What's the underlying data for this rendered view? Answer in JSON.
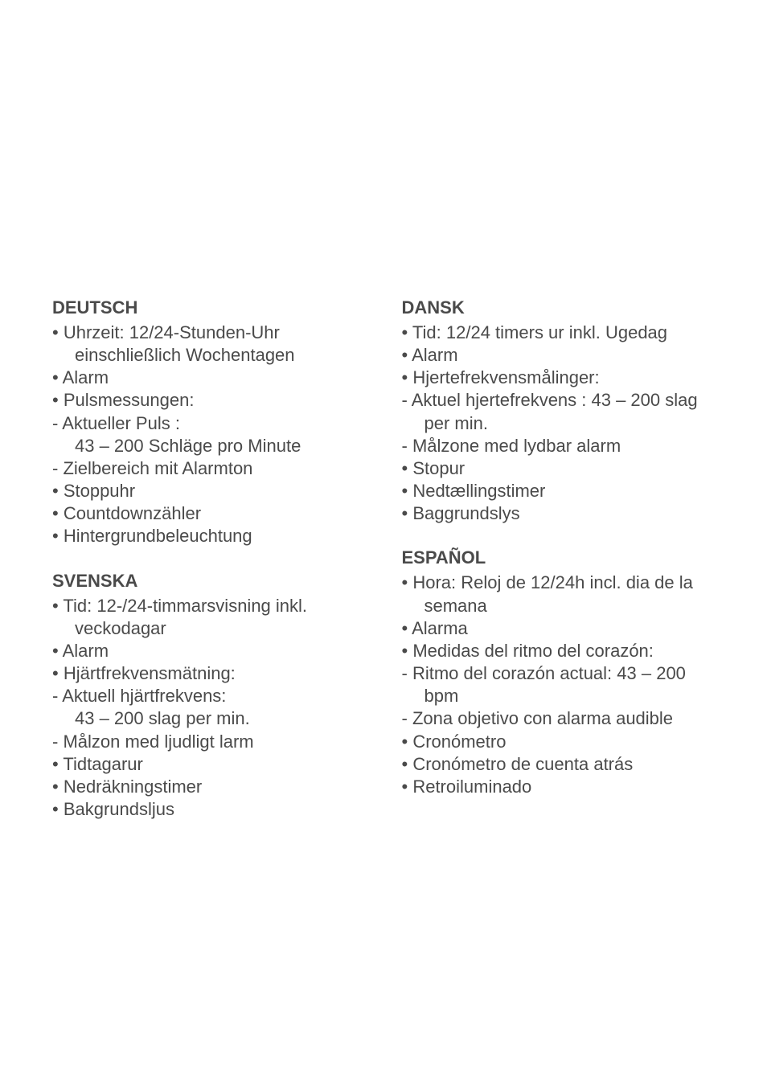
{
  "colors": {
    "text": "#4a4a4a",
    "background": "#ffffff"
  },
  "typography": {
    "font_family": "Arial, Helvetica, sans-serif",
    "title_fontsize": 22,
    "title_weight": "bold",
    "body_fontsize": 22,
    "line_height": 1.28
  },
  "columns": [
    {
      "sections": [
        {
          "title": "DEUTSCH",
          "items": [
            {
              "bullet": "•",
              "text": "Uhrzeit: 12/24-Stunden-Uhr einschließlich Wochentagen"
            },
            {
              "bullet": "•",
              "text": "Alarm"
            },
            {
              "bullet": "•",
              "text": "Pulsmessungen:"
            },
            {
              "bullet": "-",
              "text": "Aktueller Puls :"
            },
            {
              "bullet": "",
              "text": "43 – 200 Schläge pro Minute"
            },
            {
              "bullet": "-",
              "text": "Zielbereich mit Alarmton"
            },
            {
              "bullet": "•",
              "text": "Stoppuhr"
            },
            {
              "bullet": "•",
              "text": "Countdownzähler"
            },
            {
              "bullet": "•",
              "text": "Hintergrundbeleuchtung"
            }
          ]
        },
        {
          "title": "SVENSKA",
          "items": [
            {
              "bullet": "•",
              "text": "Tid: 12-/24-timmarsvisning inkl. veckodagar"
            },
            {
              "bullet": "•",
              "text": "Alarm"
            },
            {
              "bullet": "•",
              "text": "Hjärtfrekvensmätning:"
            },
            {
              "bullet": "-",
              "text": "Aktuell hjärtfrekvens:"
            },
            {
              "bullet": "",
              "text": "43 – 200 slag per min."
            },
            {
              "bullet": "-",
              "text": "Målzon med ljudligt larm"
            },
            {
              "bullet": "•",
              "text": "Tidtagarur"
            },
            {
              "bullet": "•",
              "text": "Nedräkningstimer"
            },
            {
              "bullet": "•",
              "text": "Bakgrundsljus"
            }
          ]
        }
      ]
    },
    {
      "sections": [
        {
          "title": "DANSK",
          "items": [
            {
              "bullet": "•",
              "text": "Tid: 12/24 timers ur inkl. Ugedag"
            },
            {
              "bullet": "•",
              "text": "Alarm"
            },
            {
              "bullet": "•",
              "text": "Hjertefrekvensmålinger:"
            },
            {
              "bullet": "-",
              "text": "Aktuel hjertefrekvens : 43 – 200 slag per min."
            },
            {
              "bullet": "-",
              "text": "Målzone med lydbar alarm"
            },
            {
              "bullet": "•",
              "text": "Stopur"
            },
            {
              "bullet": "•",
              "text": "Nedtællingstimer"
            },
            {
              "bullet": "•",
              "text": "Baggrundslys"
            }
          ]
        },
        {
          "title": "ESPAÑOL",
          "items": [
            {
              "bullet": "•",
              "text": "Hora: Reloj de 12/24h incl. dia de la semana"
            },
            {
              "bullet": "•",
              "text": "Alarma"
            },
            {
              "bullet": "•",
              "text": "Medidas del ritmo del corazón:"
            },
            {
              "bullet": "-",
              "text": "Ritmo del corazón actual: 43 – 200 bpm"
            },
            {
              "bullet": "-",
              "text": "Zona objetivo con alarma audible"
            },
            {
              "bullet": "•",
              "text": "Cronómetro"
            },
            {
              "bullet": "•",
              "text": "Cronómetro de cuenta atrás"
            },
            {
              "bullet": "•",
              "text": "Retroiluminado"
            }
          ]
        }
      ]
    }
  ]
}
